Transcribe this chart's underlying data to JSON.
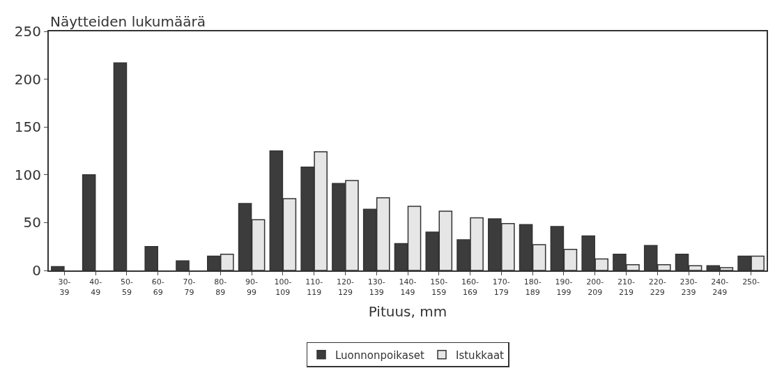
{
  "chart_data": {
    "type": "bar",
    "ylabel": "Näytteiden lukumäärä",
    "xlabel": "Pituus, mm",
    "categories": [
      "30-39",
      "40-49",
      "50-59",
      "60-69",
      "70-79",
      "80-89",
      "90-99",
      "100-109",
      "110-119",
      "120-129",
      "130-139",
      "140-149",
      "150-159",
      "160-169",
      "170-179",
      "180-189",
      "190-199",
      "200-209",
      "210-219",
      "220-229",
      "230-239",
      "240-249",
      "250-"
    ],
    "series": [
      {
        "name": "Luonnonpoikaset",
        "color": "#3c3c3c",
        "values": [
          4,
          100,
          217,
          25,
          10,
          15,
          70,
          125,
          108,
          91,
          64,
          28,
          40,
          32,
          54,
          48,
          46,
          36,
          17,
          26,
          17,
          5,
          15
        ]
      },
      {
        "name": "Istukkaat",
        "color": "#e6e6e6",
        "values": [
          null,
          null,
          null,
          null,
          null,
          17,
          53,
          75,
          124,
          94,
          76,
          67,
          62,
          55,
          49,
          27,
          22,
          12,
          6,
          6,
          5,
          3,
          15
        ]
      }
    ],
    "ylim": [
      0,
      250
    ],
    "yticks": [
      0,
      50,
      100,
      150,
      200,
      250
    ],
    "legend": "bottom"
  }
}
